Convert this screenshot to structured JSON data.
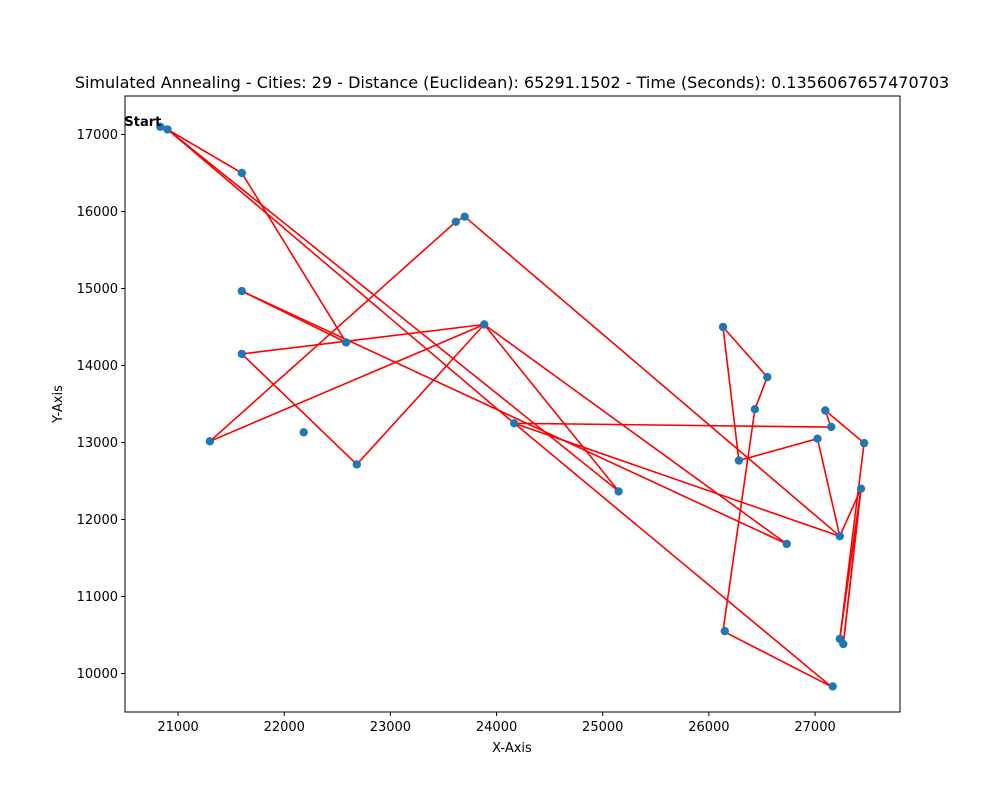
{
  "chart_data": {
    "type": "line",
    "title": "Simulated Annealing - Cities: 29 - Distance (Euclidean): 65291.1502 - Time (Seconds): 0.1356067657470703",
    "xlabel": "X-Axis",
    "ylabel": "Y-Axis",
    "xlim": [
      20500,
      27800
    ],
    "ylim": [
      9500,
      17500
    ],
    "xticks": [
      21000,
      22000,
      23000,
      24000,
      25000,
      26000,
      27000
    ],
    "yticks": [
      10000,
      11000,
      12000,
      13000,
      14000,
      15000,
      16000,
      17000
    ],
    "grid": false,
    "start_label": "Start",
    "route_color": "#ff0000",
    "point_color": "#1f77b4",
    "route": [
      [
        20833,
        17100
      ],
      [
        20900,
        17066
      ],
      [
        25150,
        12366
      ],
      [
        23883,
        14533
      ],
      [
        22683,
        12716
      ],
      [
        21600,
        14150
      ],
      [
        23883,
        14533
      ],
      [
        21300,
        13016
      ],
      [
        23616,
        15866
      ],
      [
        23700,
        15933
      ],
      [
        27233,
        11783
      ],
      [
        27433,
        12400
      ],
      [
        27266,
        10383
      ],
      [
        27433,
        12400
      ],
      [
        27233,
        10450
      ],
      [
        27462,
        12992
      ],
      [
        27096,
        13415
      ],
      [
        27150,
        13200
      ],
      [
        24166,
        13250
      ],
      [
        27150,
        9833
      ],
      [
        26133,
        10550
      ],
      [
        26433,
        13433
      ],
      [
        26550,
        13850
      ],
      [
        26133,
        14500
      ],
      [
        26283,
        12766
      ],
      [
        27023,
        13050
      ],
      [
        27233,
        11783
      ],
      [
        24166,
        13250
      ],
      [
        20900,
        17066
      ],
      [
        21600,
        16500
      ],
      [
        22583,
        14300
      ],
      [
        21600,
        14966
      ],
      [
        26733,
        11683
      ],
      [
        23883,
        14533
      ]
    ],
    "cities": [
      [
        20833,
        17100
      ],
      [
        20900,
        17066
      ],
      [
        21300,
        13016
      ],
      [
        21600,
        14150
      ],
      [
        21600,
        14966
      ],
      [
        21600,
        16500
      ],
      [
        22183,
        13133
      ],
      [
        22583,
        14300
      ],
      [
        22683,
        12716
      ],
      [
        23616,
        15866
      ],
      [
        23700,
        15933
      ],
      [
        23883,
        14533
      ],
      [
        24166,
        13250
      ],
      [
        25149,
        12365
      ],
      [
        26133,
        14500
      ],
      [
        26150,
        10550
      ],
      [
        26283,
        12766
      ],
      [
        26433,
        13433
      ],
      [
        26550,
        13850
      ],
      [
        26733,
        11683
      ],
      [
        27023,
        13050
      ],
      [
        27096,
        13415
      ],
      [
        27153,
        13203
      ],
      [
        27166,
        9833
      ],
      [
        27233,
        10450
      ],
      [
        27233,
        11783
      ],
      [
        27266,
        10383
      ],
      [
        27433,
        12400
      ],
      [
        27462,
        12992
      ]
    ]
  }
}
